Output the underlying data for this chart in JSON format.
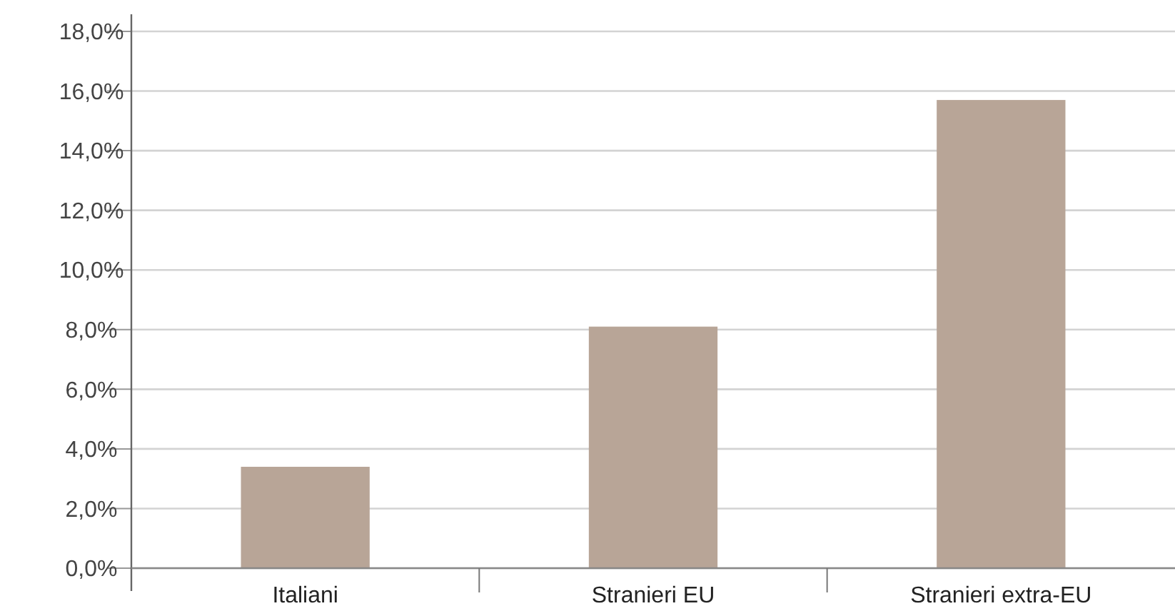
{
  "chart_data": {
    "type": "bar",
    "categories": [
      "Italiani",
      "Stranieri EU",
      "Stranieri extra-EU"
    ],
    "values": [
      3.4,
      8.1,
      15.7
    ],
    "color": "#b8a597",
    "ylim": [
      0,
      18
    ],
    "yticks": [
      {
        "value": 0,
        "label": "0,0%"
      },
      {
        "value": 2,
        "label": "2,0%"
      },
      {
        "value": 4,
        "label": "4,0%"
      },
      {
        "value": 6,
        "label": "6,0%"
      },
      {
        "value": 8,
        "label": "8,0%"
      },
      {
        "value": 10,
        "label": "10,0%"
      },
      {
        "value": 12,
        "label": "12,0%"
      },
      {
        "value": 14,
        "label": "14,0%"
      },
      {
        "value": 16,
        "label": "16,0%"
      },
      {
        "value": 18,
        "label": "18,0%"
      }
    ],
    "grid": "y"
  }
}
